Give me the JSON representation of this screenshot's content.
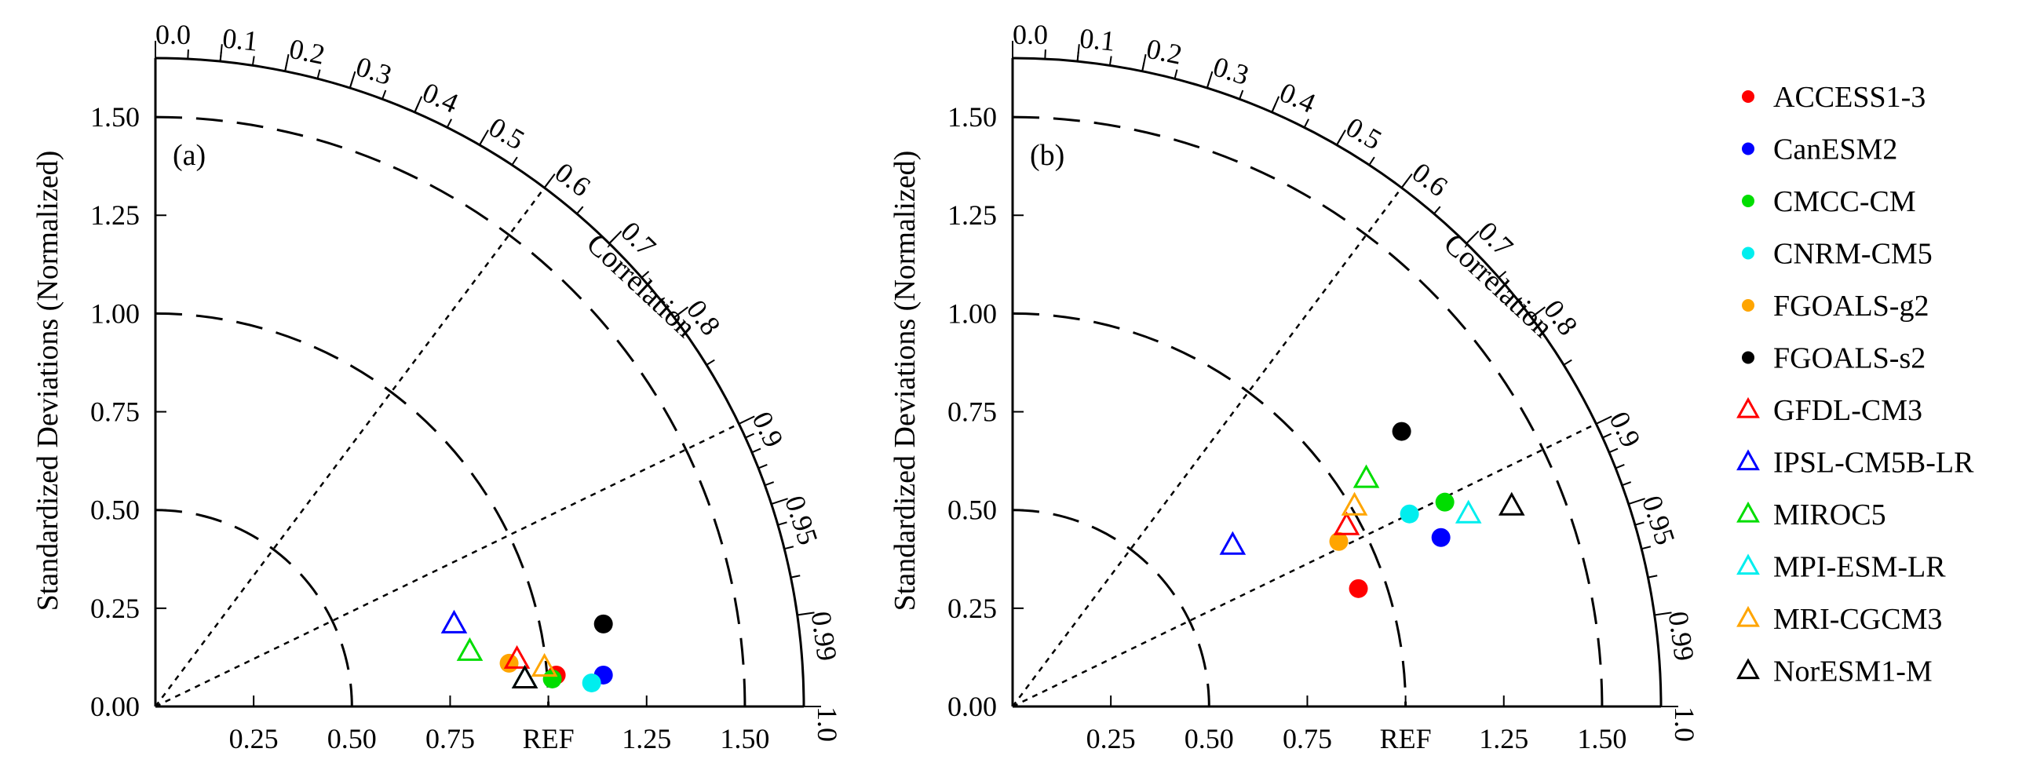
{
  "chart_data": [
    {
      "type": "taylor-diagram",
      "panel_label": "(a)",
      "ylabel": "Standardized Deviations (Normalized)",
      "correlation_label": "Correlation",
      "ref_label": "REF",
      "std_range": [
        0,
        1.65
      ],
      "std_ticks": [
        "0.00",
        "0.25",
        "0.50",
        "0.75",
        "1.00",
        "1.25",
        "1.50"
      ],
      "x_ticks": [
        "0.25",
        "0.50",
        "0.75",
        "1.25",
        "1.50"
      ],
      "corr_ticks": [
        "0.0",
        "0.1",
        "0.2",
        "0.3",
        "0.4",
        "0.5",
        "0.6",
        "0.7",
        "0.8",
        "0.9",
        "0.95",
        "0.99",
        "1.0"
      ],
      "points": [
        {
          "model": "ACCESS1-3",
          "x": 1.02,
          "y": 0.08
        },
        {
          "model": "CanESM2",
          "x": 1.14,
          "y": 0.08
        },
        {
          "model": "CMCC-CM",
          "x": 1.01,
          "y": 0.07
        },
        {
          "model": "CNRM-CM5",
          "x": 1.11,
          "y": 0.06
        },
        {
          "model": "FGOALS-g2",
          "x": 0.9,
          "y": 0.11
        },
        {
          "model": "FGOALS-s2",
          "x": 1.14,
          "y": 0.21
        },
        {
          "model": "GFDL-CM3",
          "x": 0.92,
          "y": 0.12
        },
        {
          "model": "IPSL-CM5B-LR",
          "x": 0.76,
          "y": 0.21
        },
        {
          "model": "MIROC5",
          "x": 0.8,
          "y": 0.14
        },
        {
          "model": "MPI-ESM-LR",
          "x": 0.94,
          "y": 0.07
        },
        {
          "model": "MRI-CGCM3",
          "x": 0.99,
          "y": 0.1
        },
        {
          "model": "NorESM1-M",
          "x": 0.94,
          "y": 0.07
        }
      ]
    },
    {
      "type": "taylor-diagram",
      "panel_label": "(b)",
      "ylabel": "Standardized Deviations (Normalized)",
      "correlation_label": "Correlation",
      "ref_label": "REF",
      "std_range": [
        0,
        1.65
      ],
      "std_ticks": [
        "0.00",
        "0.25",
        "0.50",
        "0.75",
        "1.00",
        "1.25",
        "1.50"
      ],
      "x_ticks": [
        "0.25",
        "0.50",
        "0.75",
        "1.25",
        "1.50"
      ],
      "corr_ticks": [
        "0.0",
        "0.1",
        "0.2",
        "0.3",
        "0.4",
        "0.5",
        "0.6",
        "0.7",
        "0.8",
        "0.9",
        "0.95",
        "0.99",
        "1.0"
      ],
      "points": [
        {
          "model": "ACCESS1-3",
          "x": 0.88,
          "y": 0.3
        },
        {
          "model": "CanESM2",
          "x": 1.09,
          "y": 0.43
        },
        {
          "model": "CMCC-CM",
          "x": 1.1,
          "y": 0.52
        },
        {
          "model": "CNRM-CM5",
          "x": 1.01,
          "y": 0.49
        },
        {
          "model": "FGOALS-g2",
          "x": 0.83,
          "y": 0.42
        },
        {
          "model": "FGOALS-s2",
          "x": 0.99,
          "y": 0.7
        },
        {
          "model": "GFDL-CM3",
          "x": 0.85,
          "y": 0.46
        },
        {
          "model": "IPSL-CM5B-LR",
          "x": 0.56,
          "y": 0.41
        },
        {
          "model": "MIROC5",
          "x": 0.9,
          "y": 0.58
        },
        {
          "model": "MPI-ESM-LR",
          "x": 1.16,
          "y": 0.49
        },
        {
          "model": "MRI-CGCM3",
          "x": 0.87,
          "y": 0.51
        },
        {
          "model": "NorESM1-M",
          "x": 1.27,
          "y": 0.51
        }
      ]
    }
  ],
  "legend": [
    {
      "label": "ACCESS1-3",
      "marker": "circle",
      "color": "#ff0000"
    },
    {
      "label": "CanESM2",
      "marker": "circle",
      "color": "#0000ff"
    },
    {
      "label": "CMCC-CM",
      "marker": "circle",
      "color": "#00dd00"
    },
    {
      "label": "CNRM-CM5",
      "marker": "circle",
      "color": "#00eeee"
    },
    {
      "label": "FGOALS-g2",
      "marker": "circle",
      "color": "#ffa500"
    },
    {
      "label": "FGOALS-s2",
      "marker": "circle",
      "color": "#000000"
    },
    {
      "label": "GFDL-CM3",
      "marker": "triangle",
      "color": "#ff0000"
    },
    {
      "label": "IPSL-CM5B-LR",
      "marker": "triangle",
      "color": "#0000ff"
    },
    {
      "label": "MIROC5",
      "marker": "triangle",
      "color": "#00dd00"
    },
    {
      "label": "MPI-ESM-LR",
      "marker": "triangle",
      "color": "#00eeee"
    },
    {
      "label": "MRI-CGCM3",
      "marker": "triangle",
      "color": "#ffa500"
    },
    {
      "label": "NorESM1-M",
      "marker": "triangle",
      "color": "#000000"
    }
  ]
}
